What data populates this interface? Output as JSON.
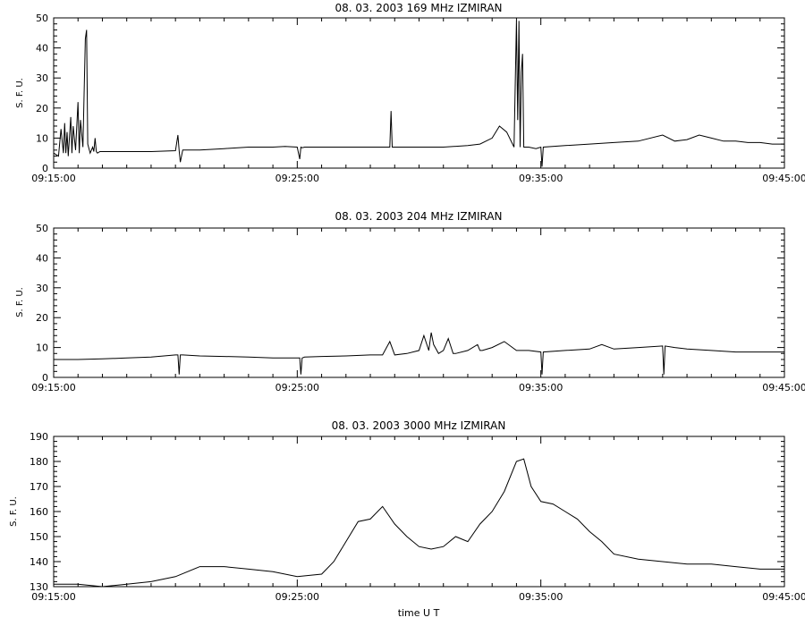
{
  "xlabel": "time  U T",
  "chart_data": [
    {
      "type": "line",
      "title": "08.  03.  2003    169 MHz    IZMIRAN",
      "ylabel": "S. F. U.",
      "xlim": [
        "09:15:00",
        "09:45:00"
      ],
      "ylim": [
        0,
        50
      ],
      "yticks": [
        0,
        10,
        20,
        30,
        40,
        50
      ],
      "xticks": [
        "09:15:00",
        "09:25:00",
        "09:35:00",
        "09:45:00"
      ],
      "grid": false,
      "series": [
        {
          "x_minutes_after_0915": [
            0.0,
            0.2,
            0.3,
            0.4,
            0.45,
            0.5,
            0.55,
            0.6,
            0.7,
            0.75,
            0.8,
            0.9,
            1.0,
            1.05,
            1.1,
            1.2,
            1.3,
            1.35,
            1.4,
            1.5,
            1.6,
            1.65,
            1.7,
            1.75,
            1.8,
            1.9,
            2.0,
            3.0,
            4.0,
            5.0,
            5.1,
            5.15,
            5.2,
            5.3,
            6.0,
            7.0,
            8.0,
            9.0,
            9.5,
            10.0,
            10.1,
            10.15,
            10.2,
            10.3,
            11.0,
            12.0,
            13.0,
            13.8,
            13.85,
            13.9,
            14.0,
            15.0,
            16.0,
            17.0,
            17.5,
            18.0,
            18.3,
            18.6,
            18.9,
            19.0,
            19.05,
            19.1,
            19.15,
            19.2,
            19.25,
            19.3,
            19.5,
            19.8,
            20.0,
            20.05,
            20.1,
            21.0,
            22.0,
            23.0,
            24.0,
            25.0,
            25.5,
            26.0,
            26.5,
            27.0,
            27.5,
            28.0,
            28.5,
            29.0,
            29.5,
            30.0
          ],
          "y": [
            5,
            4,
            13,
            5,
            15,
            5,
            12,
            4,
            17,
            5,
            14,
            6,
            22,
            5,
            16,
            7,
            43,
            46,
            8,
            5,
            7,
            5.5,
            10,
            5.5,
            5,
            5.5,
            5.5,
            5.5,
            5.5,
            5.8,
            11,
            5.8,
            2,
            6,
            6,
            6.5,
            7,
            7,
            7.2,
            7,
            3,
            7,
            6.8,
            7,
            7,
            7,
            7,
            7,
            19,
            7,
            7,
            7,
            7,
            7.5,
            8,
            10,
            14,
            12,
            7,
            49,
            16,
            49,
            7,
            32,
            38,
            7,
            7,
            6.5,
            7,
            0.5,
            7,
            7.5,
            8,
            8.5,
            9,
            11,
            9,
            9.5,
            11,
            10,
            9,
            9,
            8.5,
            8.5,
            8,
            8
          ]
        }
      ]
    },
    {
      "type": "line",
      "title": "08.  03.  2003    204 MHz    IZMIRAN",
      "ylabel": "S. F. U.",
      "xlim": [
        "09:15:00",
        "09:45:00"
      ],
      "ylim": [
        0,
        50
      ],
      "yticks": [
        0,
        10,
        20,
        30,
        40,
        50
      ],
      "xticks": [
        "09:15:00",
        "09:25:00",
        "09:35:00",
        "09:45:00"
      ],
      "grid": false,
      "series": [
        {
          "x_minutes_after_0915": [
            0.0,
            1.0,
            2.0,
            3.0,
            4.0,
            5.0,
            5.1,
            5.15,
            5.2,
            5.3,
            6.0,
            7.0,
            8.0,
            9.0,
            10.0,
            10.1,
            10.15,
            10.2,
            10.3,
            11.0,
            12.0,
            13.0,
            13.5,
            13.8,
            14.0,
            14.5,
            15.0,
            15.2,
            15.4,
            15.5,
            15.6,
            15.8,
            16.0,
            16.2,
            16.4,
            16.5,
            17.0,
            17.4,
            17.5,
            17.6,
            18.0,
            18.5,
            19.0,
            19.5,
            20.0,
            20.05,
            20.1,
            21.0,
            22.0,
            22.5,
            23.0,
            24.0,
            25.0,
            25.05,
            25.1,
            25.5,
            26.0,
            27.0,
            28.0,
            29.0,
            30.0
          ],
          "y": [
            6,
            6,
            6.2,
            6.5,
            6.8,
            7.5,
            7.5,
            1,
            7.5,
            7.5,
            7.2,
            7,
            6.8,
            6.5,
            6.5,
            6.5,
            1,
            6.5,
            6.8,
            7,
            7.2,
            7.5,
            7.5,
            12,
            7.5,
            8,
            9,
            14,
            9,
            15,
            11,
            8,
            9,
            13,
            8,
            8,
            9,
            11,
            9,
            9,
            10,
            12,
            9,
            9,
            8.5,
            1,
            8.5,
            9,
            9.5,
            11,
            9.5,
            10,
            10.5,
            1,
            10.5,
            10,
            9.5,
            9,
            8.5,
            8.5,
            8.5
          ]
        }
      ]
    },
    {
      "type": "line",
      "title": "08.  03.  2003    3000 MHz    IZMIRAN",
      "ylabel": "S. F. U.",
      "xlim": [
        "09:15:00",
        "09:45:00"
      ],
      "ylim": [
        130,
        190
      ],
      "yticks": [
        130,
        140,
        150,
        160,
        170,
        180,
        190
      ],
      "xticks": [
        "09:15:00",
        "09:25:00",
        "09:35:00",
        "09:45:00"
      ],
      "grid": false,
      "series": [
        {
          "x_minutes_after_0915": [
            0,
            1,
            2,
            3,
            4,
            5,
            6,
            7,
            8,
            9,
            10,
            11,
            11.5,
            12,
            12.5,
            13,
            13.5,
            14,
            14.5,
            15,
            15.5,
            16,
            16.5,
            17,
            17.5,
            18,
            18.5,
            19,
            19.3,
            19.6,
            20,
            20.5,
            21,
            21.5,
            22,
            22.5,
            23,
            24,
            25,
            26,
            27,
            28,
            29,
            30
          ],
          "y": [
            131,
            131,
            130,
            131,
            132,
            134,
            138,
            138,
            137,
            136,
            134,
            135,
            140,
            148,
            156,
            157,
            162,
            155,
            150,
            146,
            145,
            146,
            150,
            148,
            155,
            160,
            168,
            180,
            181,
            170,
            164,
            163,
            160,
            157,
            152,
            148,
            143,
            141,
            140,
            139,
            139,
            138,
            137,
            137
          ]
        }
      ]
    }
  ]
}
